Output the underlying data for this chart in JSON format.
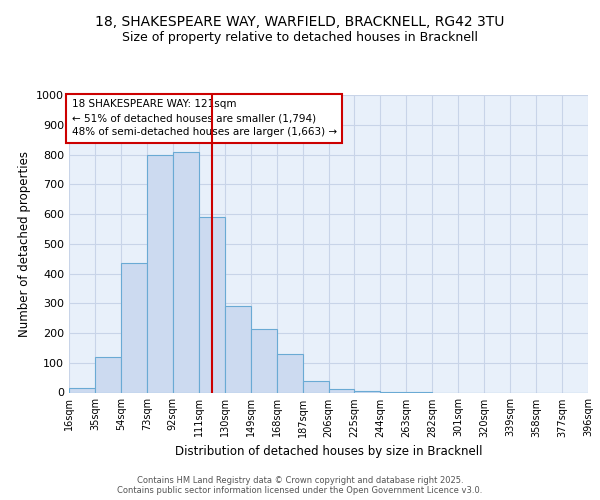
{
  "title_line1": "18, SHAKESPEARE WAY, WARFIELD, BRACKNELL, RG42 3TU",
  "title_line2": "Size of property relative to detached houses in Bracknell",
  "xlabel": "Distribution of detached houses by size in Bracknell",
  "ylabel": "Number of detached properties",
  "bin_edges": [
    16,
    35,
    54,
    73,
    92,
    111,
    130,
    149,
    168,
    187,
    206,
    225,
    244,
    263,
    282,
    301,
    320,
    339,
    358,
    377,
    396
  ],
  "bar_heights": [
    15,
    120,
    435,
    800,
    810,
    590,
    290,
    215,
    130,
    40,
    12,
    5,
    2,
    1,
    0,
    0,
    0,
    0,
    0,
    0
  ],
  "bar_facecolor": "#ccdaf0",
  "bar_edgecolor": "#6aaad4",
  "vline_x": 121,
  "vline_color": "#cc0000",
  "ylim": [
    0,
    1000
  ],
  "xlim": [
    16,
    396
  ],
  "annotation_title": "18 SHAKESPEARE WAY: 121sqm",
  "annotation_line1": "← 51% of detached houses are smaller (1,794)",
  "annotation_line2": "48% of semi-detached houses are larger (1,663) →",
  "annotation_box_edgecolor": "#cc0000",
  "annotation_box_facecolor": "#ffffff",
  "footer_line1": "Contains HM Land Registry data © Crown copyright and database right 2025.",
  "footer_line2": "Contains public sector information licensed under the Open Government Licence v3.0.",
  "background_color": "#ffffff",
  "axes_facecolor": "#e8f0fa",
  "grid_color": "#c8d4e8",
  "tick_labels": [
    "16sqm",
    "35sqm",
    "54sqm",
    "73sqm",
    "92sqm",
    "111sqm",
    "130sqm",
    "149sqm",
    "168sqm",
    "187sqm",
    "206sqm",
    "225sqm",
    "244sqm",
    "263sqm",
    "282sqm",
    "301sqm",
    "320sqm",
    "339sqm",
    "358sqm",
    "377sqm",
    "396sqm"
  ],
  "yticks": [
    0,
    100,
    200,
    300,
    400,
    500,
    600,
    700,
    800,
    900,
    1000
  ]
}
